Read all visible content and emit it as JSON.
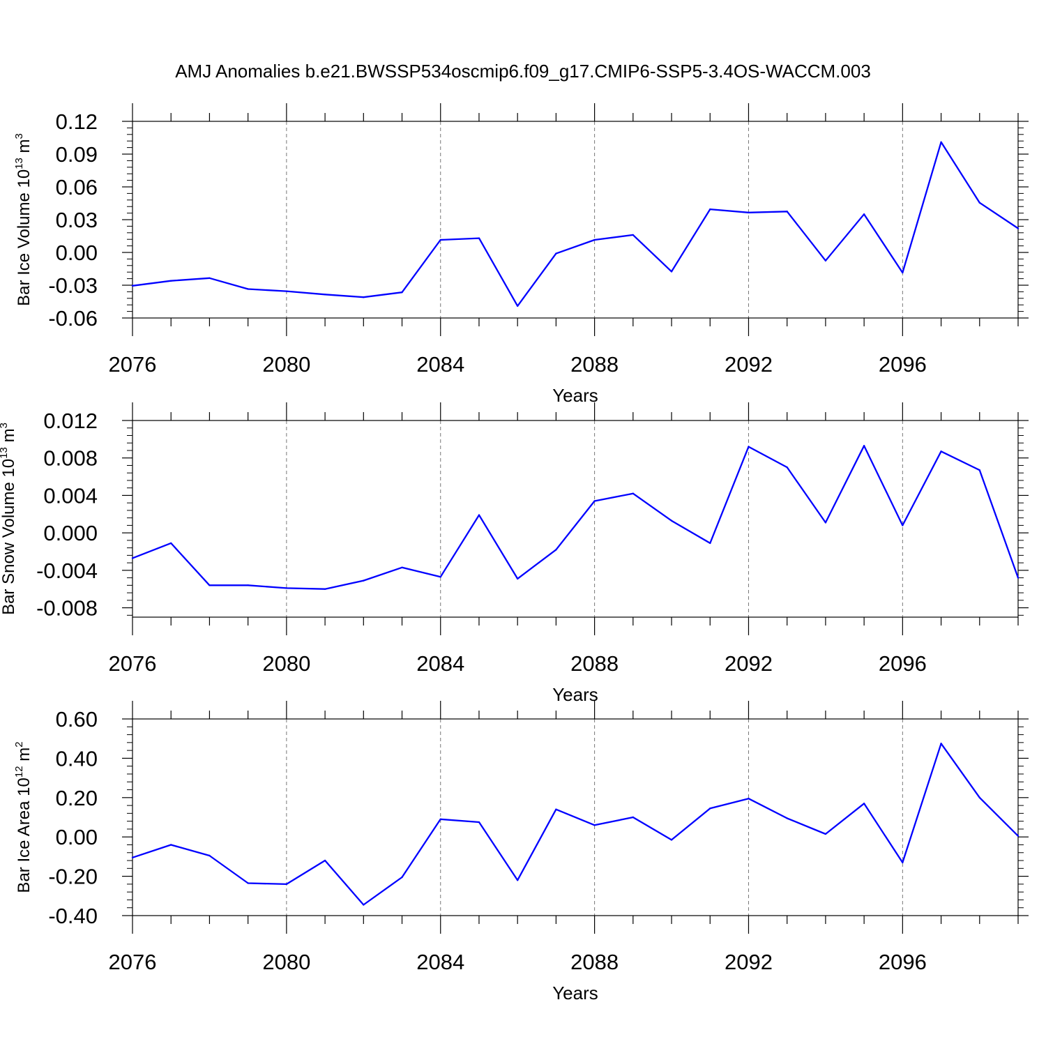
{
  "title": "AMJ Anomalies b.e21.BWSSP534oscmip6.f09_g17.CMIP6-SSP5-3.4OS-WACCM.003",
  "chart_data": [
    {
      "type": "line",
      "title": "",
      "xlabel": "Years",
      "ylabel": {
        "pre": "Bar Ice Volume 10",
        "exp": "13",
        "unit": " m",
        "unit_exp": "3"
      },
      "xlim": [
        2076,
        2099
      ],
      "ylim": [
        -0.06,
        0.12
      ],
      "xticks": [
        2076,
        2080,
        2084,
        2088,
        2092,
        2096
      ],
      "yticks": [
        0.12,
        0.09,
        0.06,
        0.03,
        0.0,
        -0.03,
        -0.06
      ],
      "ytick_labels": [
        "0.12",
        "0.09",
        "0.06",
        "0.03",
        "0.00",
        "-0.03",
        "-0.06"
      ],
      "x": [
        2076,
        2077,
        2078,
        2079,
        2080,
        2081,
        2082,
        2083,
        2084,
        2085,
        2086,
        2087,
        2088,
        2089,
        2090,
        2091,
        2092,
        2093,
        2094,
        2095,
        2096,
        2097,
        2098,
        2099
      ],
      "series": [
        {
          "name": "Bar Ice Volume",
          "color": "#0000ff",
          "values": [
            -0.0305,
            -0.026,
            -0.0235,
            -0.0335,
            -0.0355,
            -0.0385,
            -0.041,
            -0.0365,
            0.0115,
            0.013,
            -0.049,
            -0.001,
            0.0115,
            0.016,
            -0.0175,
            0.0395,
            0.0365,
            0.0375,
            -0.0075,
            0.035,
            -0.0185,
            0.101,
            0.0455,
            0.022
          ]
        }
      ]
    },
    {
      "type": "line",
      "title": "",
      "xlabel": "Years",
      "ylabel": {
        "pre": "Bar Snow Volume 10",
        "exp": "13",
        "unit": " m",
        "unit_exp": "3"
      },
      "xlim": [
        2076,
        2099
      ],
      "ylim": [
        -0.009,
        0.012
      ],
      "xticks": [
        2076,
        2080,
        2084,
        2088,
        2092,
        2096
      ],
      "yticks": [
        0.012,
        0.008,
        0.004,
        0.0,
        -0.004,
        -0.008
      ],
      "ytick_labels": [
        "0.012",
        "0.008",
        "0.004",
        "0.000",
        "-0.004",
        "-0.008"
      ],
      "x": [
        2076,
        2077,
        2078,
        2079,
        2080,
        2081,
        2082,
        2083,
        2084,
        2085,
        2086,
        2087,
        2088,
        2089,
        2090,
        2091,
        2092,
        2093,
        2094,
        2095,
        2096,
        2097,
        2098,
        2099
      ],
      "series": [
        {
          "name": "Bar Snow Volume",
          "color": "#0000ff",
          "values": [
            -0.0027,
            -0.0011,
            -0.0056,
            -0.0056,
            -0.0059,
            -0.006,
            -0.0051,
            -0.0037,
            -0.0047,
            0.0019,
            -0.0049,
            -0.0018,
            0.0034,
            0.0042,
            0.0013,
            -0.0011,
            0.0092,
            0.007,
            0.0011,
            0.0093,
            0.0008,
            0.0087,
            0.0067,
            -0.0048
          ]
        }
      ]
    },
    {
      "type": "line",
      "title": "",
      "xlabel": "Years",
      "ylabel": {
        "pre": "Bar Ice Area 10",
        "exp": "12",
        "unit": " m",
        "unit_exp": "2"
      },
      "xlim": [
        2076,
        2099
      ],
      "ylim": [
        -0.4,
        0.6
      ],
      "xticks": [
        2076,
        2080,
        2084,
        2088,
        2092,
        2096
      ],
      "yticks": [
        0.6,
        0.4,
        0.2,
        0.0,
        -0.2,
        -0.4
      ],
      "ytick_labels": [
        "0.60",
        "0.40",
        "0.20",
        "0.00",
        "-0.20",
        "-0.40"
      ],
      "x": [
        2076,
        2077,
        2078,
        2079,
        2080,
        2081,
        2082,
        2083,
        2084,
        2085,
        2086,
        2087,
        2088,
        2089,
        2090,
        2091,
        2092,
        2093,
        2094,
        2095,
        2096,
        2097,
        2098,
        2099
      ],
      "series": [
        {
          "name": "Bar Ice Area",
          "color": "#0000ff",
          "values": [
            -0.105,
            -0.04,
            -0.095,
            -0.235,
            -0.24,
            -0.12,
            -0.345,
            -0.205,
            0.09,
            0.075,
            -0.22,
            0.14,
            0.06,
            0.1,
            -0.015,
            0.145,
            0.195,
            0.095,
            0.015,
            0.17,
            -0.13,
            0.475,
            0.2,
            0.005
          ]
        }
      ]
    }
  ]
}
